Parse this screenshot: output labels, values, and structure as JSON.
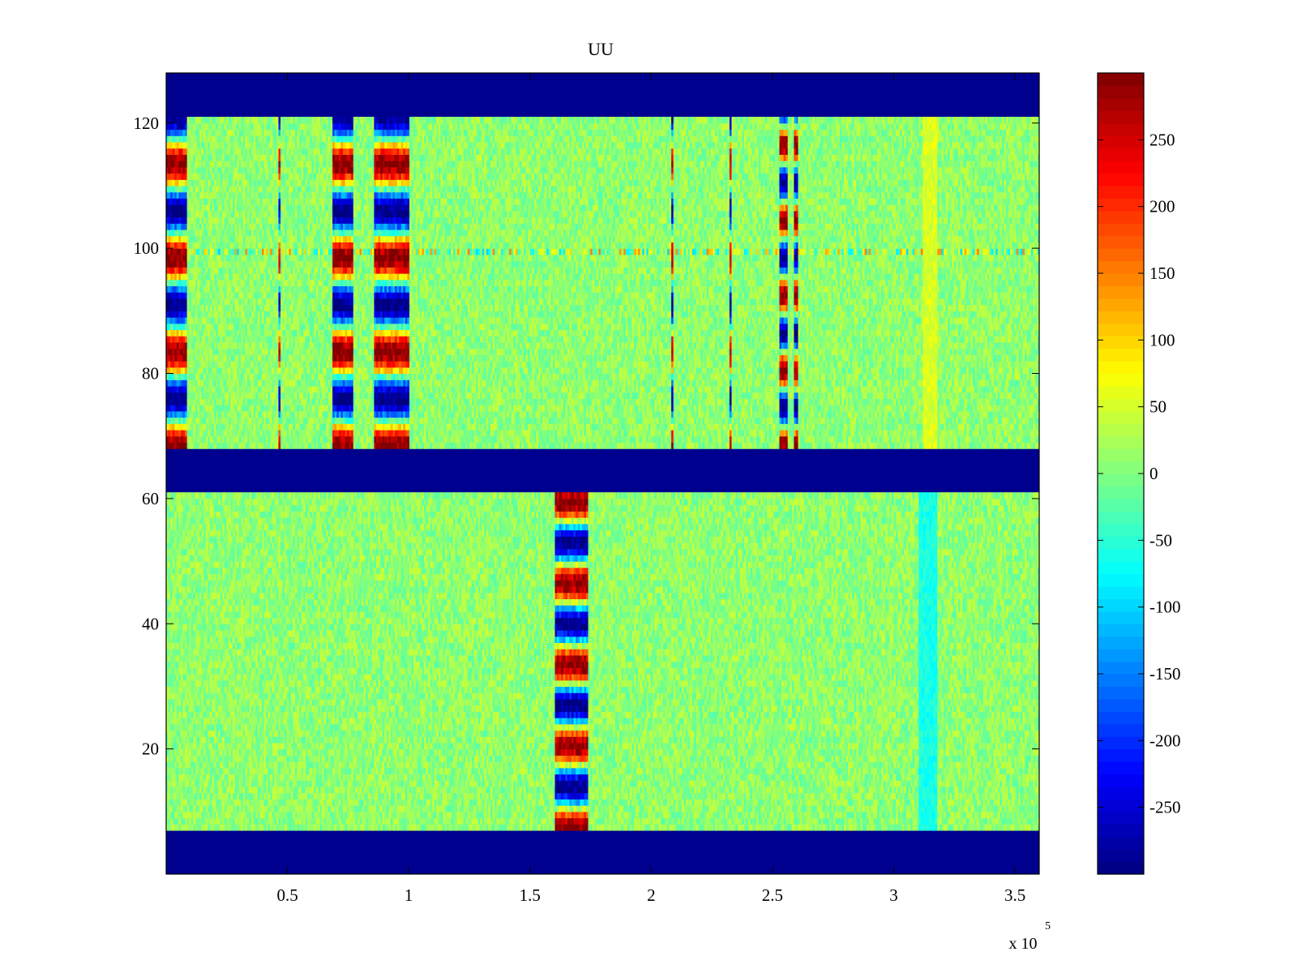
{
  "chart_data": {
    "type": "heatmap",
    "title": "UU",
    "xlabel": "",
    "ylabel": "",
    "colormap": "jet",
    "x_multiplier_label": "x 10",
    "x_multiplier_exponent": "5",
    "xlim": [
      0,
      3.6
    ],
    "ylim": [
      0,
      128
    ],
    "clim": [
      -300,
      300
    ],
    "xticks": [
      0.5,
      1,
      1.5,
      2,
      2.5,
      3,
      3.5
    ],
    "xtick_labels": [
      "0.5",
      "1",
      "1.5",
      "2",
      "2.5",
      "3",
      "3.5"
    ],
    "yticks": [
      20,
      40,
      60,
      80,
      100,
      120
    ],
    "ytick_labels": [
      "20",
      "40",
      "60",
      "80",
      "100",
      "120"
    ],
    "colorbar_ticks": [
      250,
      200,
      150,
      100,
      50,
      0,
      -50,
      -100,
      -150,
      -200,
      -250
    ],
    "colorbar_tick_labels": [
      "250",
      "200",
      "150",
      "100",
      "50",
      "0",
      "-50",
      "-100",
      "-150",
      "-200",
      "-250"
    ],
    "background_value": 10,
    "background_noise": 35,
    "masked_value": -300,
    "masked_row_bands": [
      [
        121,
        128
      ],
      [
        61,
        68
      ],
      [
        0,
        7
      ]
    ],
    "row_100_streak_value": 70,
    "feature_columns": [
      {
        "x": [
          0.0,
          0.09
        ],
        "rows": [
          68,
          121
        ],
        "pattern": "oscillating",
        "amplitude": 300,
        "period": 15
      },
      {
        "x": [
          0.46,
          0.47
        ],
        "rows": [
          68,
          121
        ],
        "pattern": "oscillating",
        "amplitude": 250,
        "period": 15
      },
      {
        "x": [
          0.69,
          0.77
        ],
        "rows": [
          68,
          121
        ],
        "pattern": "oscillating",
        "amplitude": 300,
        "period": 15
      },
      {
        "x": [
          0.86,
          1.0
        ],
        "rows": [
          68,
          121
        ],
        "pattern": "oscillating",
        "amplitude": 300,
        "period": 15
      },
      {
        "x": [
          1.6,
          1.74
        ],
        "rows": [
          7,
          61
        ],
        "pattern": "oscillating",
        "amplitude": 300,
        "period": 13
      },
      {
        "x": [
          2.08,
          2.09
        ],
        "rows": [
          68,
          121
        ],
        "pattern": "oscillating",
        "amplitude": 280,
        "period": 15
      },
      {
        "x": [
          2.32,
          2.33
        ],
        "rows": [
          68,
          121
        ],
        "pattern": "oscillating",
        "amplitude": 280,
        "period": 15
      },
      {
        "x": [
          2.53,
          2.56
        ],
        "rows": [
          68,
          121
        ],
        "pattern": "oscillating",
        "amplitude": 300,
        "period": 12
      },
      {
        "x": [
          2.59,
          2.61
        ],
        "rows": [
          68,
          121
        ],
        "pattern": "oscillating",
        "amplitude": 300,
        "period": 12
      },
      {
        "x": [
          3.1,
          3.18
        ],
        "rows": [
          7,
          61
        ],
        "pattern": "offset",
        "amplitude": -60,
        "period": 0
      },
      {
        "x": [
          3.12,
          3.18
        ],
        "rows": [
          68,
          121
        ],
        "pattern": "offset",
        "amplitude": 55,
        "period": 0
      }
    ]
  }
}
